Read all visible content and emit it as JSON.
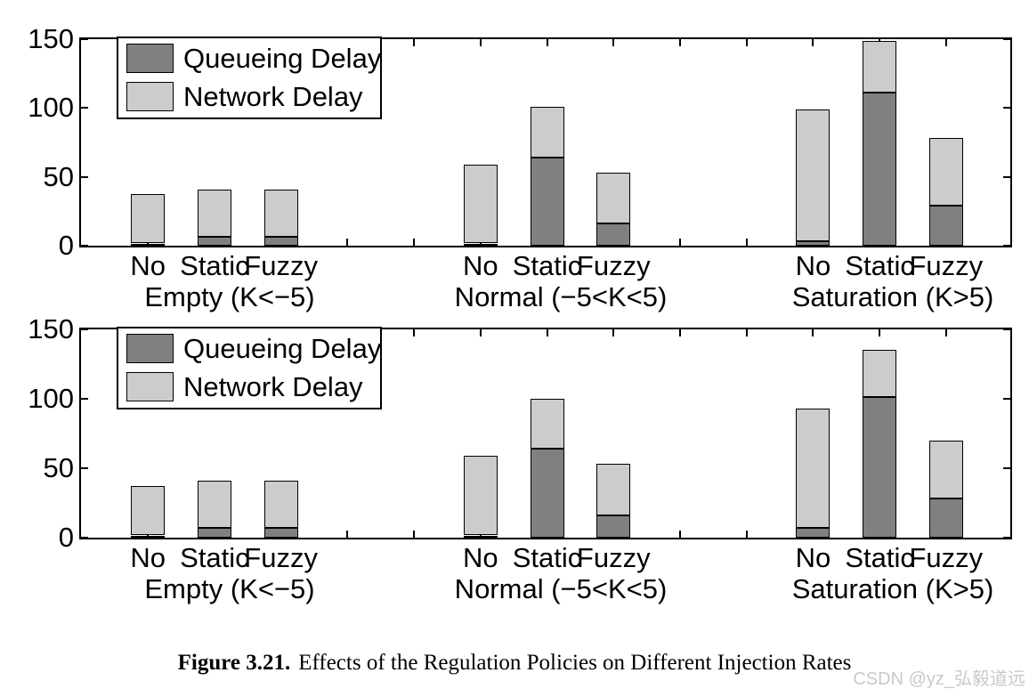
{
  "figure": {
    "caption_label": "Figure 3.21.",
    "caption_text": "Effects of the Regulation Policies on Different Injection Rates"
  },
  "watermark": {
    "text": "CSDN @yz_弘毅道远",
    "color": "#c9c9c9"
  },
  "colors": {
    "queueing_delay": "#808080",
    "network_delay": "#cccccc",
    "axis": "#000000"
  },
  "chart_data": [
    {
      "type": "bar",
      "subtype": "stacked",
      "panel": "top",
      "groups": [
        "Empty (K<−5)",
        "Normal (−5<K<5)",
        "Saturation (K>5)"
      ],
      "categories": [
        "No",
        "Static",
        "Fuzzy"
      ],
      "series": [
        {
          "name": "Queueing Delay",
          "color": "#808080",
          "values": [
            [
              1.5,
              6.5,
              6.5
            ],
            [
              1.5,
              64,
              16
            ],
            [
              3,
              111,
              29
            ]
          ]
        },
        {
          "name": "Network Delay",
          "color": "#cccccc",
          "values": [
            [
              36,
              34.5,
              34.5
            ],
            [
              57,
              37,
              37
            ],
            [
              96,
              38,
              49
            ]
          ]
        }
      ],
      "totals": [
        [
          37.5,
          41,
          41
        ],
        [
          58.5,
          101,
          53
        ],
        [
          99,
          149,
          78
        ]
      ],
      "title": "",
      "xlabel": "",
      "ylabel": "",
      "ylim": [
        0,
        150
      ],
      "yticks": [
        0,
        50,
        100,
        150
      ],
      "grid": false,
      "legend_position": "top-left"
    },
    {
      "type": "bar",
      "subtype": "stacked",
      "panel": "bottom",
      "groups": [
        "Empty (K<−5)",
        "Normal (−5<K<5)",
        "Saturation (K>5)"
      ],
      "categories": [
        "No",
        "Static",
        "Fuzzy"
      ],
      "series": [
        {
          "name": "Queueing Delay",
          "color": "#808080",
          "values": [
            [
              1.5,
              7,
              7
            ],
            [
              1.5,
              64,
              16
            ],
            [
              7,
              101,
              28
            ]
          ]
        },
        {
          "name": "Network Delay",
          "color": "#cccccc",
          "values": [
            [
              35.5,
              34,
              34
            ],
            [
              57.5,
              36,
              37
            ],
            [
              86,
              34,
              42
            ]
          ]
        }
      ],
      "totals": [
        [
          37,
          41,
          41
        ],
        [
          59,
          100,
          53
        ],
        [
          93,
          135,
          70
        ]
      ],
      "title": "",
      "xlabel": "",
      "ylabel": "",
      "ylim": [
        0,
        150
      ],
      "yticks": [
        0,
        50,
        100,
        150
      ],
      "grid": false,
      "legend_position": "top-left"
    }
  ]
}
